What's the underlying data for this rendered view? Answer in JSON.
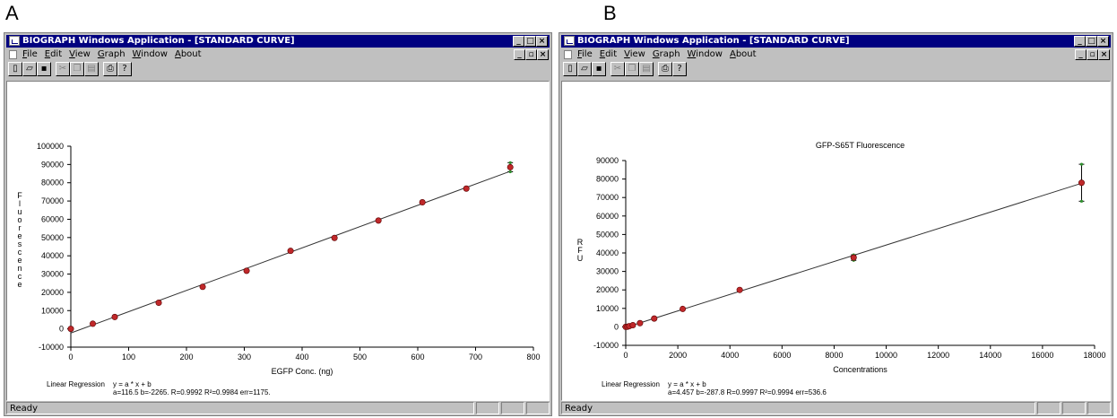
{
  "panels": [
    {
      "letter": "A",
      "window": {
        "title": "BIOGRAPH Windows Application - [STANDARD CURVE]",
        "menu": [
          "File",
          "Edit",
          "View",
          "Graph",
          "Window",
          "About"
        ],
        "status": "Ready"
      },
      "chart_data": {
        "type": "scatter",
        "title": "",
        "xlabel": "EGFP Conc. (ng)",
        "ylabel": "Fluorescence",
        "xlim": [
          0,
          800
        ],
        "ylim": [
          -10000,
          100000
        ],
        "x_ticks": [
          0,
          100,
          200,
          300,
          400,
          500,
          600,
          700,
          800
        ],
        "y_ticks": [
          -10000,
          0,
          10000,
          20000,
          30000,
          40000,
          50000,
          60000,
          70000,
          80000,
          90000,
          100000
        ],
        "grid": false,
        "points": [
          {
            "x": 0,
            "y": 0,
            "err": 0
          },
          {
            "x": 38,
            "y": 2800,
            "err": 0
          },
          {
            "x": 76,
            "y": 6500,
            "err": 0
          },
          {
            "x": 152,
            "y": 14300,
            "err": 0
          },
          {
            "x": 228,
            "y": 23000,
            "err": 0
          },
          {
            "x": 304,
            "y": 31800,
            "err": 0
          },
          {
            "x": 380,
            "y": 42700,
            "err": 0
          },
          {
            "x": 456,
            "y": 49800,
            "err": 0
          },
          {
            "x": 532,
            "y": 59300,
            "err": 0
          },
          {
            "x": 608,
            "y": 69300,
            "err": 0
          },
          {
            "x": 684,
            "y": 76800,
            "err": 0
          },
          {
            "x": 760,
            "y": 88500,
            "err": 2500
          }
        ],
        "fit": {
          "a": 116.5,
          "b": -2265
        },
        "regression_label": "Linear Regression",
        "regression_eq": "y = a * x + b",
        "regression_params": "a=116.5  b=-2265.  R=0.9992  R²=0.9984  err=1175."
      }
    },
    {
      "letter": "B",
      "window": {
        "title": "BIOGRAPH Windows Application - [STANDARD CURVE]",
        "menu": [
          "File",
          "Edit",
          "View",
          "Graph",
          "Window",
          "About"
        ],
        "status": "Ready"
      },
      "chart_data": {
        "type": "scatter",
        "title": "GFP-S65T Fluorescence",
        "xlabel": "Concentrations",
        "ylabel": "RFU",
        "xlim": [
          0,
          18000
        ],
        "ylim": [
          -10000,
          90000
        ],
        "x_ticks": [
          0,
          2000,
          4000,
          6000,
          8000,
          10000,
          12000,
          14000,
          16000,
          18000
        ],
        "y_ticks": [
          -10000,
          0,
          10000,
          20000,
          30000,
          40000,
          50000,
          60000,
          70000,
          80000,
          90000
        ],
        "grid": false,
        "points": [
          {
            "x": 0,
            "y": 0,
            "err": 0
          },
          {
            "x": 68,
            "y": 100,
            "err": 0
          },
          {
            "x": 137,
            "y": 400,
            "err": 0
          },
          {
            "x": 273,
            "y": 900,
            "err": 0
          },
          {
            "x": 547,
            "y": 2000,
            "err": 0
          },
          {
            "x": 1094,
            "y": 4500,
            "err": 0
          },
          {
            "x": 2188,
            "y": 9700,
            "err": 0
          },
          {
            "x": 4375,
            "y": 20000,
            "err": 0
          },
          {
            "x": 8750,
            "y": 37500,
            "err": 1500
          },
          {
            "x": 17500,
            "y": 78000,
            "err": 10000
          }
        ],
        "fit": {
          "a": 4.457,
          "b": -287.8
        },
        "regression_label": "Linear Regression",
        "regression_eq": "y = a * x + b",
        "regression_params": "a=4.457  b=-287.8  R=0.9997  R²=0.9994  err=536.6"
      }
    }
  ]
}
